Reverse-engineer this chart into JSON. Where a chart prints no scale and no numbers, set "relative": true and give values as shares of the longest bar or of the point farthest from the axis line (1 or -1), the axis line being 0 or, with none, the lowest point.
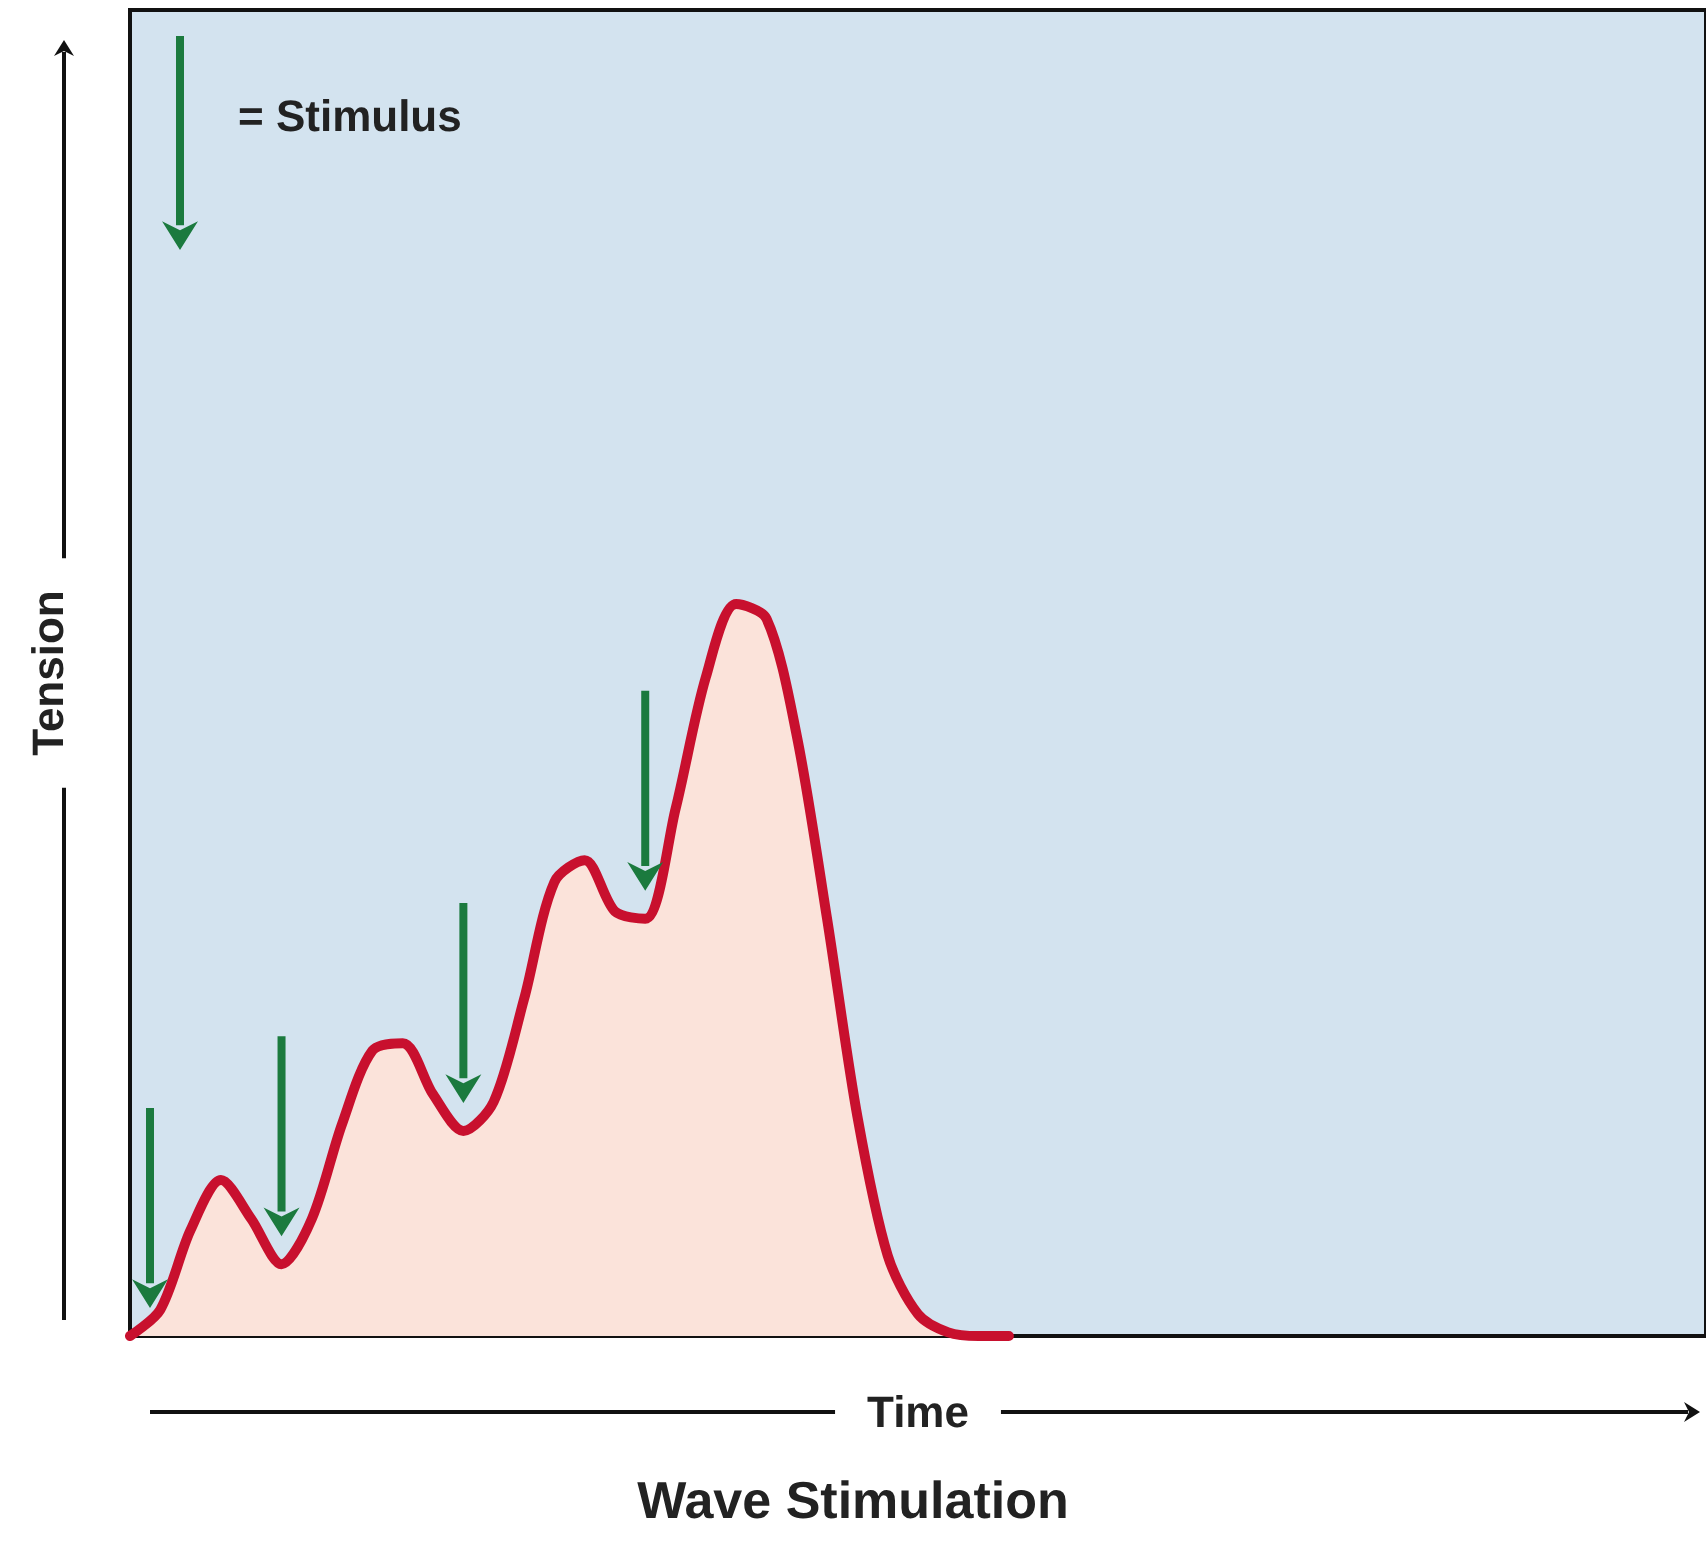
{
  "chart_data": {
    "type": "area",
    "relative": true,
    "title": "Wave Stimulation",
    "xlabel": "Time",
    "ylabel": "Tension",
    "annotations": [
      "= Stimulus"
    ],
    "tick_labels": false,
    "grid": false,
    "marker": "none",
    "line_style": "solid",
    "categories": [
      null,
      null,
      null,
      null,
      null,
      null,
      null,
      null,
      null,
      null,
      null,
      null,
      null,
      null,
      null,
      null,
      null,
      null,
      null,
      null,
      null,
      null,
      null,
      null,
      null,
      null,
      null,
      null,
      null,
      null,
      null,
      null,
      null,
      null,
      null,
      null,
      null,
      null,
      null,
      null,
      null,
      null,
      null,
      null,
      null,
      null,
      null,
      null,
      null,
      null,
      null,
      null,
      null
    ],
    "series": [
      {
        "color": "#c8102e",
        "values": [
          0,
          0.036,
          0.145,
          0.213,
          0.16,
          0.098,
          0.16,
          0.29,
          0.39,
          0.4,
          0.33,
          0.28,
          0.32,
          0.46,
          0.62,
          0.65,
          0.58,
          0.57,
          0.72,
          0.9,
          1,
          0.98,
          0.82,
          0.57,
          0.3,
          0.11,
          0.03,
          0.005,
          0,
          0,
          null,
          null,
          null,
          null,
          null,
          null,
          null,
          null,
          null,
          null,
          null,
          null,
          null,
          null,
          null,
          null,
          null,
          null,
          null,
          null,
          null,
          null,
          null
        ]
      }
    ]
  }
}
